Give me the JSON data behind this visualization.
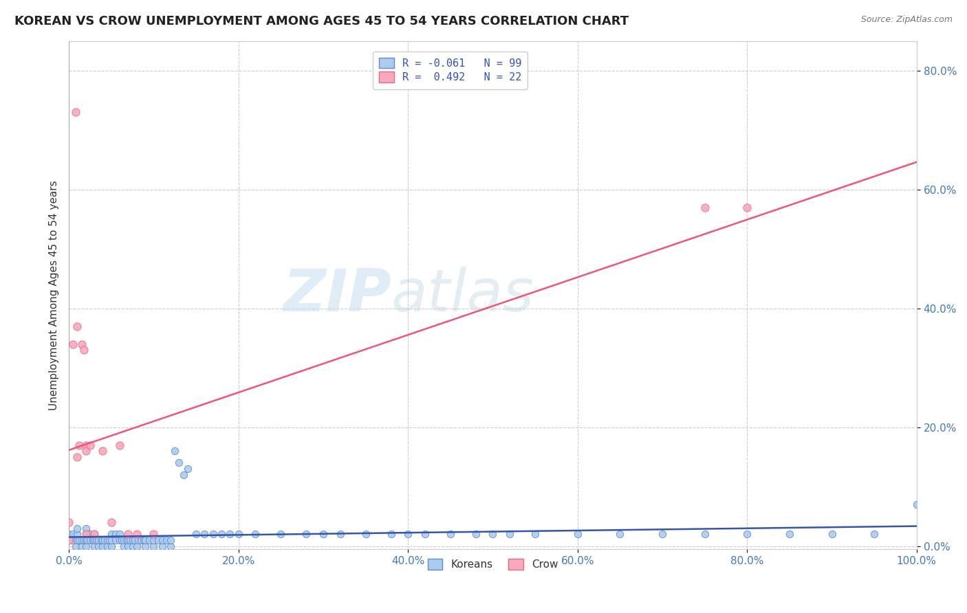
{
  "title": "KOREAN VS CROW UNEMPLOYMENT AMONG AGES 45 TO 54 YEARS CORRELATION CHART",
  "source": "Source: ZipAtlas.com",
  "ylabel": "Unemployment Among Ages 45 to 54 years",
  "xlim": [
    0.0,
    1.0
  ],
  "ylim": [
    0.0,
    0.85
  ],
  "xtick_labels": [
    "0.0%",
    "20.0%",
    "40.0%",
    "60.0%",
    "80.0%",
    "100.0%"
  ],
  "xtick_vals": [
    0.0,
    0.2,
    0.4,
    0.6,
    0.8,
    1.0
  ],
  "ytick_labels": [
    "0.0%",
    "20.0%",
    "40.0%",
    "60.0%",
    "80.0%"
  ],
  "ytick_vals": [
    0.0,
    0.2,
    0.4,
    0.6,
    0.8
  ],
  "grid_color": "#cccccc",
  "background_color": "#ffffff",
  "plot_background": "#ffffff",
  "korean_color": "#aaccee",
  "crow_color": "#f8aabc",
  "korean_edge_color": "#6688cc",
  "crow_edge_color": "#ee6688",
  "korean_line_color": "#3355aa",
  "crow_line_color": "#ee5577",
  "legend_korean_label": "R = -0.061   N = 99",
  "legend_crow_label": "R =  0.492   N = 22",
  "legend_label_koreans": "Koreans",
  "legend_label_crow": "Crow",
  "watermark_zip": "ZIP",
  "watermark_atlas": "atlas",
  "title_fontsize": 13,
  "label_fontsize": 11,
  "tick_fontsize": 11,
  "korean_x": [
    0.0,
    0.0,
    0.005,
    0.005,
    0.008,
    0.01,
    0.01,
    0.01,
    0.01,
    0.012,
    0.015,
    0.015,
    0.018,
    0.02,
    0.02,
    0.02,
    0.02,
    0.022,
    0.025,
    0.025,
    0.028,
    0.03,
    0.03,
    0.03,
    0.032,
    0.035,
    0.035,
    0.038,
    0.04,
    0.04,
    0.042,
    0.045,
    0.045,
    0.048,
    0.05,
    0.05,
    0.05,
    0.055,
    0.055,
    0.06,
    0.06,
    0.062,
    0.065,
    0.065,
    0.068,
    0.07,
    0.07,
    0.072,
    0.075,
    0.075,
    0.078,
    0.08,
    0.082,
    0.085,
    0.088,
    0.09,
    0.09,
    0.095,
    0.1,
    0.1,
    0.105,
    0.11,
    0.11,
    0.115,
    0.12,
    0.12,
    0.125,
    0.13,
    0.135,
    0.14,
    0.15,
    0.16,
    0.17,
    0.18,
    0.19,
    0.2,
    0.22,
    0.25,
    0.28,
    0.3,
    0.32,
    0.35,
    0.38,
    0.4,
    0.42,
    0.45,
    0.48,
    0.5,
    0.52,
    0.55,
    0.6,
    0.65,
    0.7,
    0.75,
    0.8,
    0.85,
    0.9,
    0.95,
    1.0
  ],
  "korean_y": [
    0.01,
    0.02,
    0.01,
    0.02,
    0.0,
    0.01,
    0.01,
    0.02,
    0.03,
    0.01,
    0.0,
    0.01,
    0.01,
    0.0,
    0.01,
    0.02,
    0.03,
    0.01,
    0.01,
    0.02,
    0.01,
    0.0,
    0.01,
    0.02,
    0.01,
    0.0,
    0.01,
    0.01,
    0.0,
    0.01,
    0.01,
    0.0,
    0.01,
    0.01,
    0.0,
    0.01,
    0.02,
    0.01,
    0.02,
    0.01,
    0.02,
    0.01,
    0.0,
    0.01,
    0.01,
    0.0,
    0.01,
    0.01,
    0.0,
    0.01,
    0.01,
    0.0,
    0.01,
    0.01,
    0.01,
    0.0,
    0.01,
    0.01,
    0.0,
    0.01,
    0.01,
    0.0,
    0.01,
    0.01,
    0.0,
    0.01,
    0.16,
    0.14,
    0.12,
    0.13,
    0.02,
    0.02,
    0.02,
    0.02,
    0.02,
    0.02,
    0.02,
    0.02,
    0.02,
    0.02,
    0.02,
    0.02,
    0.02,
    0.02,
    0.02,
    0.02,
    0.02,
    0.02,
    0.02,
    0.02,
    0.02,
    0.02,
    0.02,
    0.02,
    0.02,
    0.02,
    0.02,
    0.02,
    0.07
  ],
  "crow_x": [
    0.0,
    0.0,
    0.005,
    0.008,
    0.01,
    0.01,
    0.012,
    0.015,
    0.018,
    0.02,
    0.02,
    0.02,
    0.025,
    0.03,
    0.04,
    0.05,
    0.06,
    0.07,
    0.08,
    0.1,
    0.75,
    0.8
  ],
  "crow_y": [
    0.01,
    0.04,
    0.34,
    0.73,
    0.37,
    0.15,
    0.17,
    0.34,
    0.33,
    0.17,
    0.02,
    0.16,
    0.17,
    0.02,
    0.16,
    0.04,
    0.17,
    0.02,
    0.02,
    0.02,
    0.57,
    0.57
  ]
}
